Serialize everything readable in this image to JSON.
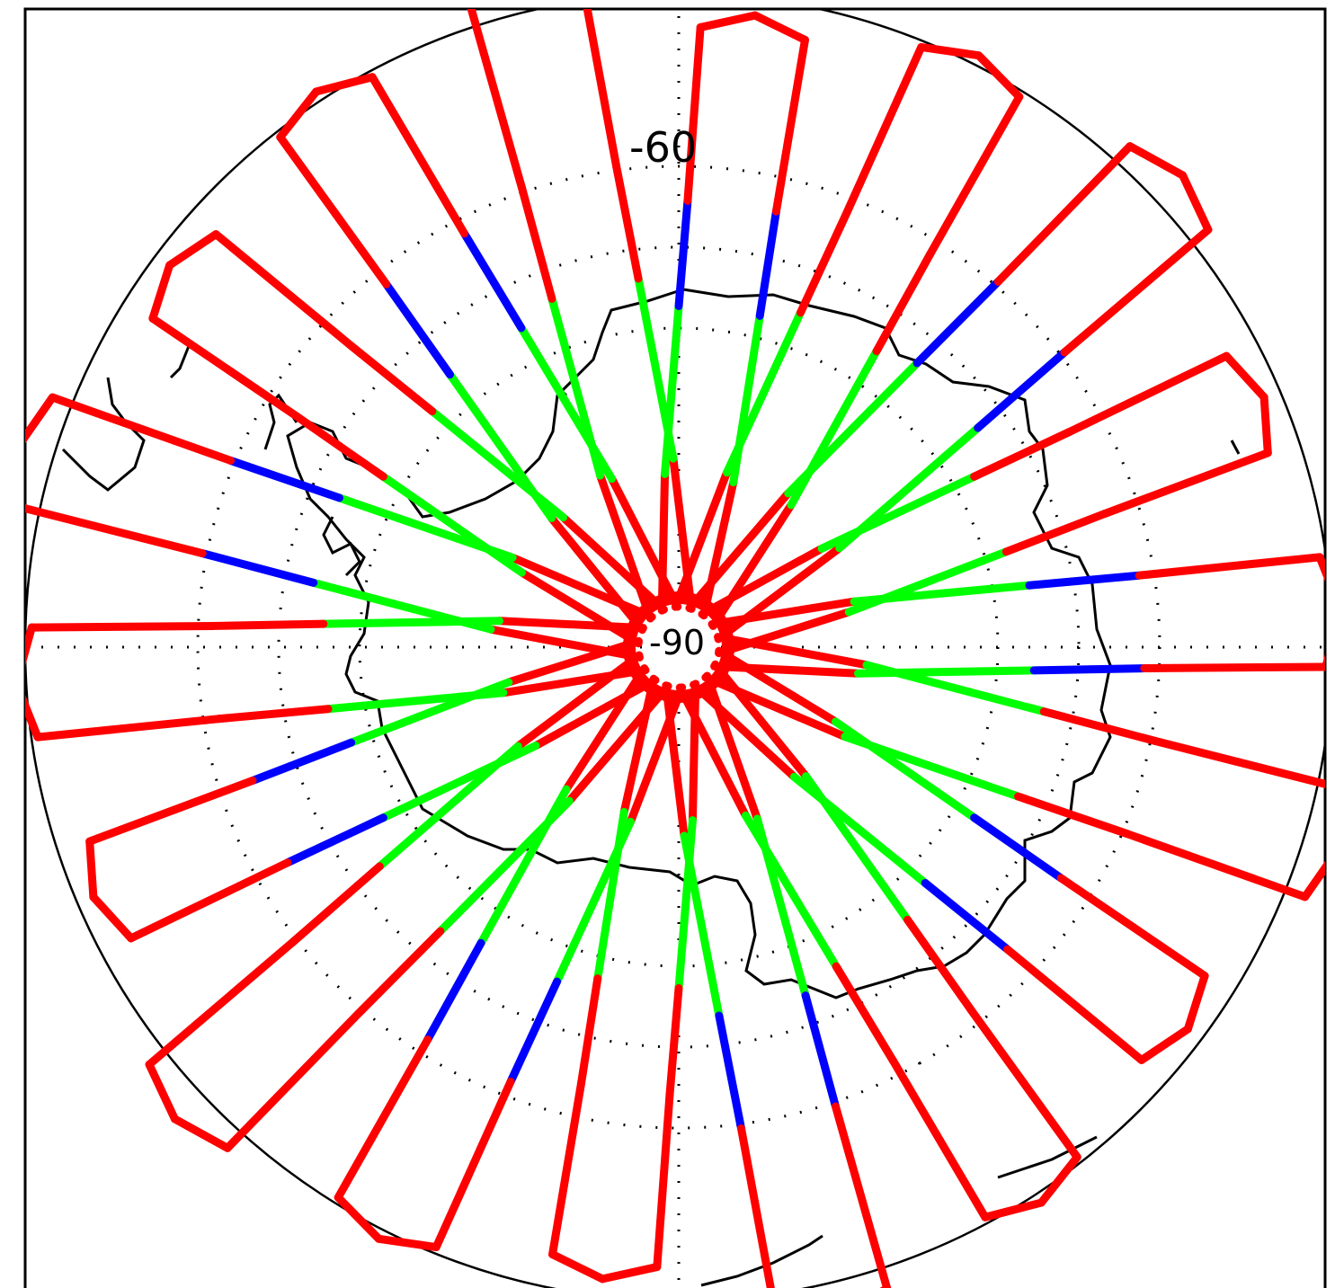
{
  "map": {
    "projection": "south-polar-stereographic",
    "latitude_labels": {
      "lat_60": "-60",
      "pole": "-90"
    },
    "graticule": {
      "style": "dotted",
      "color": "#000000"
    },
    "coastline_color": "#000000",
    "frame_color": "#000000",
    "background": "#ffffff"
  },
  "legend_colors": {
    "track": "#ff0000",
    "mid": "#00ff00",
    "edge": "#0000ff"
  },
  "tracks": {
    "count": 18,
    "style": "petal ground-track loops through south pole"
  }
}
